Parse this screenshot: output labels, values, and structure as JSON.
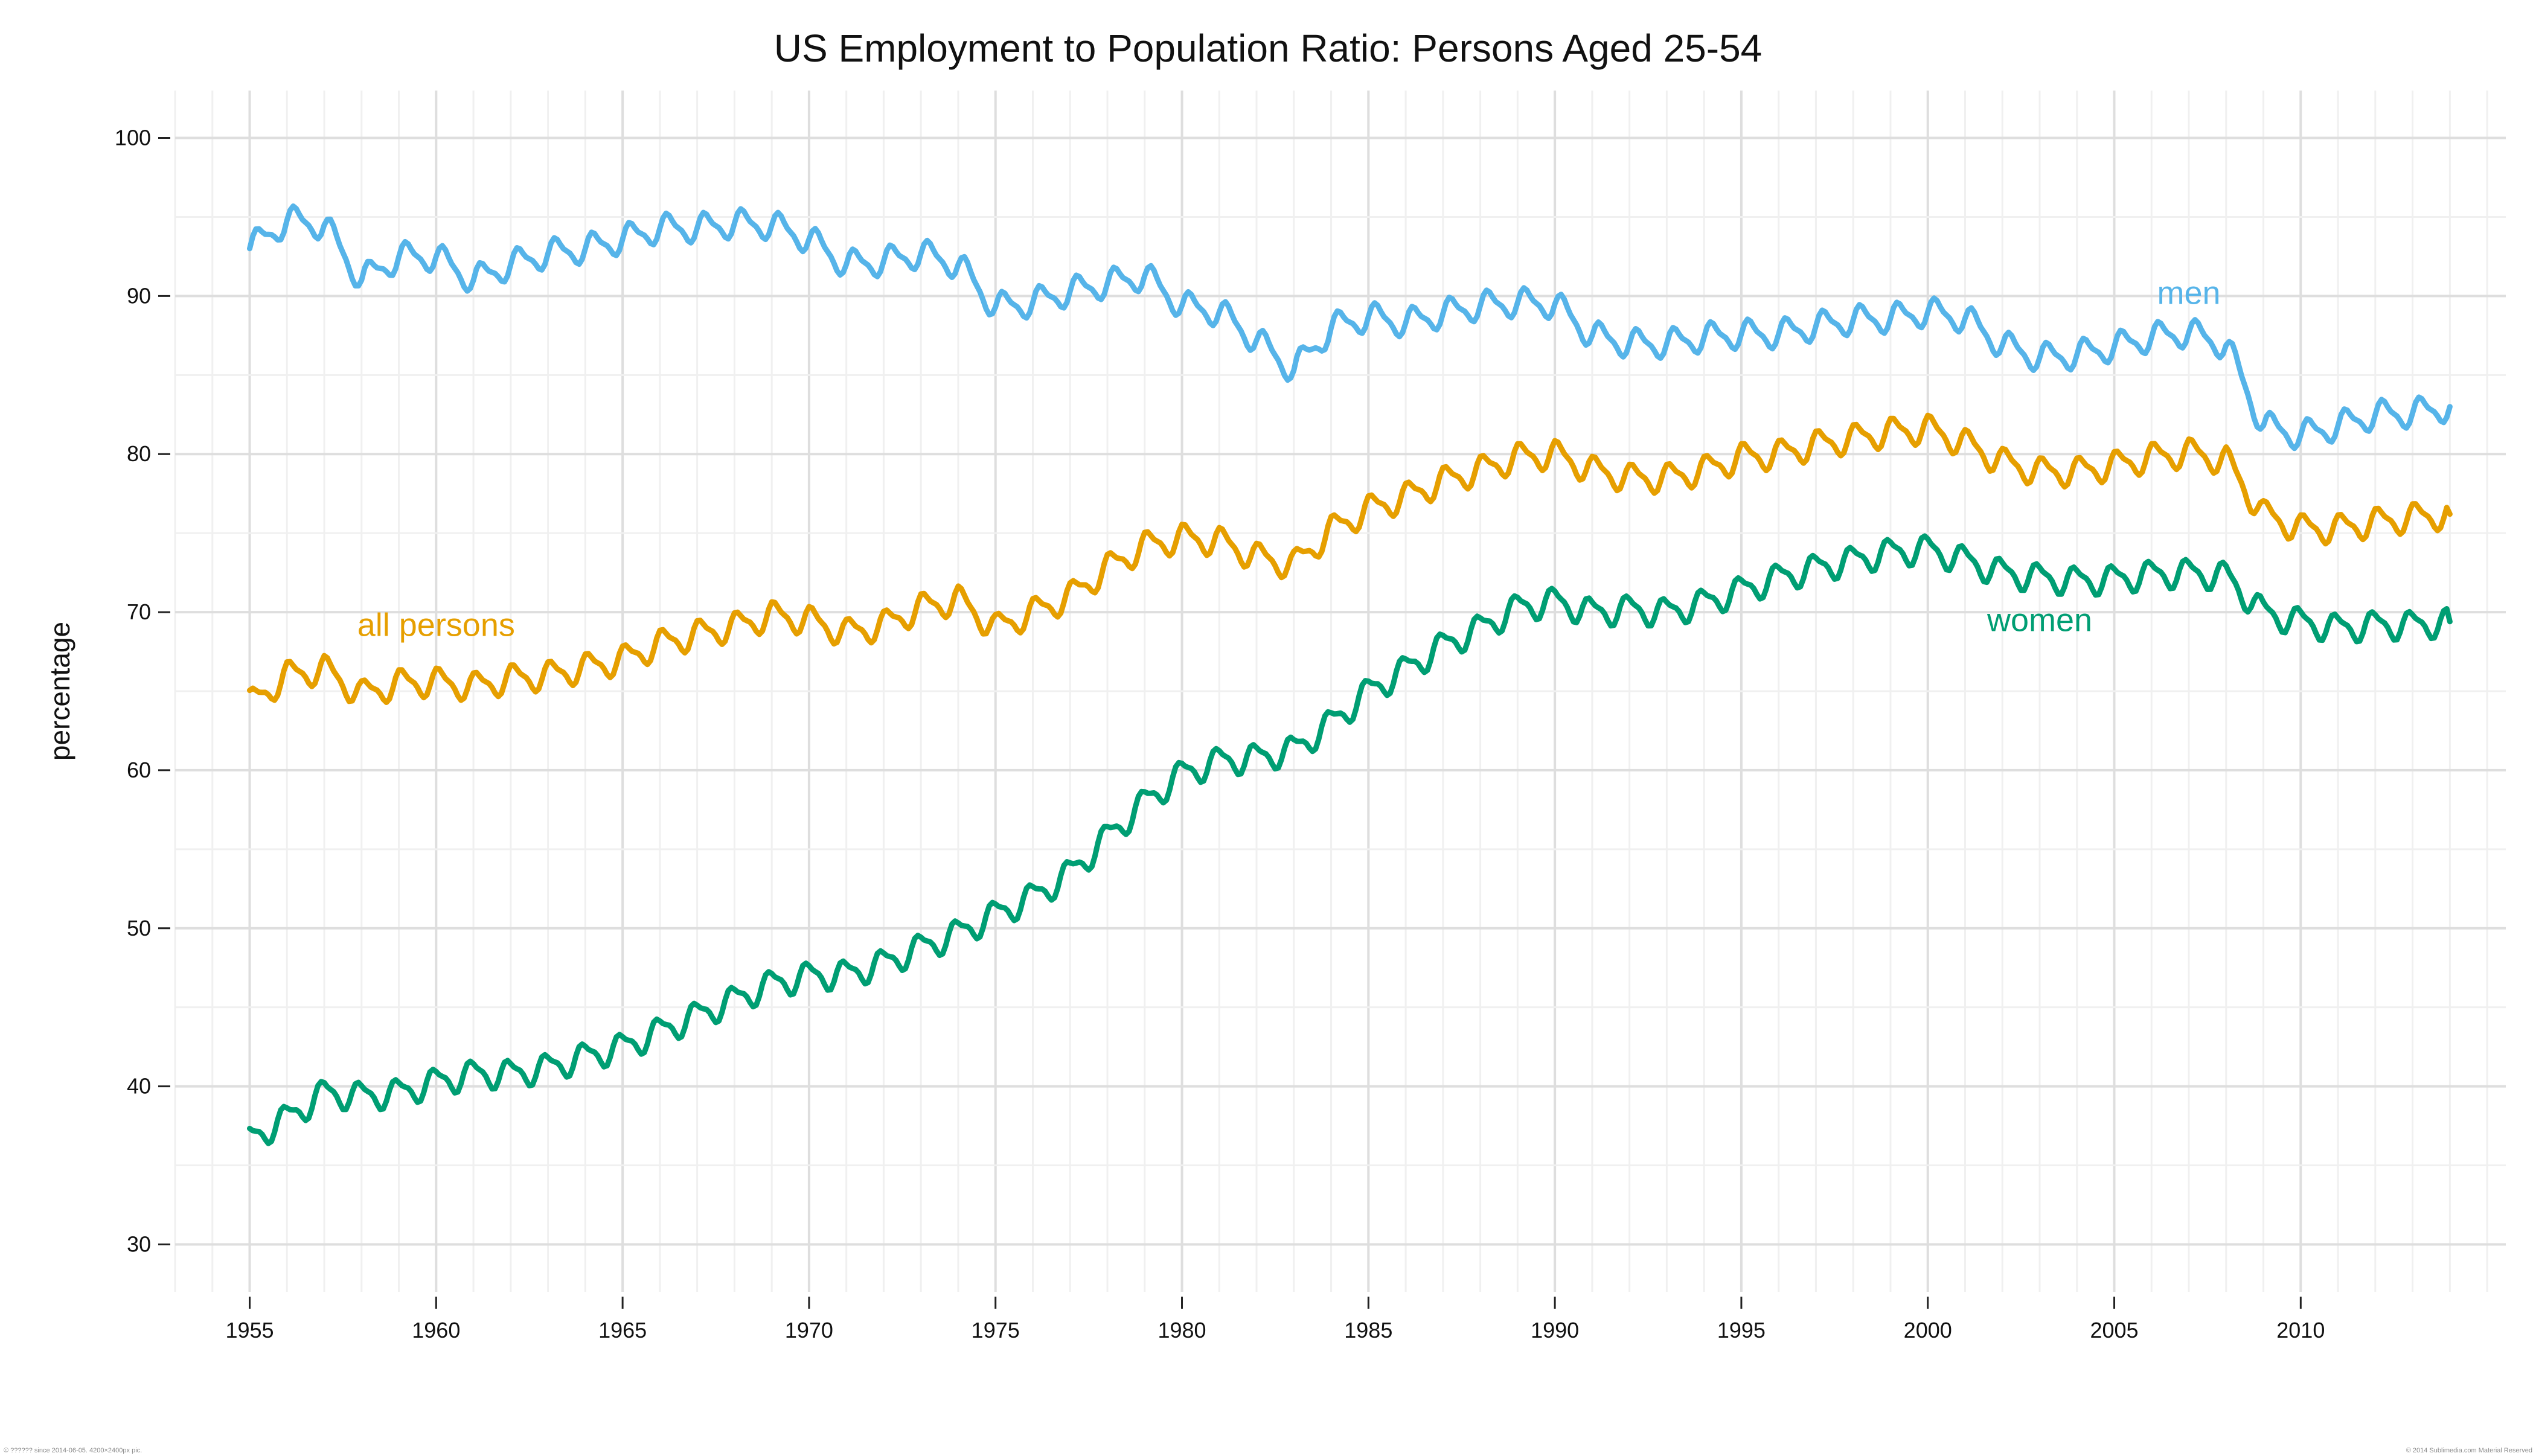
{
  "chart_data": {
    "type": "line",
    "title": "US Employment to Population Ratio: Persons Aged 25-54",
    "xlabel": "",
    "ylabel": "percentage",
    "xlim": [
      1953,
      2015.5
    ],
    "ylim": [
      27,
      103
    ],
    "x_ticks": [
      "1955",
      "1960",
      "1965",
      "1970",
      "1975",
      "1980",
      "1985",
      "1990",
      "1995",
      "2000",
      "2005",
      "2010"
    ],
    "y_ticks": [
      "30",
      "40",
      "50",
      "60",
      "70",
      "80",
      "90",
      "100"
    ],
    "grid": true,
    "x_anchors": [
      1955,
      1956,
      1957,
      1958,
      1959,
      1960,
      1961,
      1962,
      1963,
      1964,
      1965,
      1966,
      1967,
      1968,
      1969,
      1970,
      1971,
      1972,
      1973,
      1974,
      1975,
      1976,
      1977,
      1978,
      1979,
      1980,
      1981,
      1982,
      1983,
      1984,
      1985,
      1986,
      1987,
      1988,
      1989,
      1990,
      1991,
      1992,
      1993,
      1994,
      1995,
      1996,
      1997,
      1998,
      1999,
      2000,
      2001,
      2002,
      2003,
      2004,
      2005,
      2006,
      2007,
      2008,
      2009,
      2010,
      2011,
      2012,
      2013,
      2014
    ],
    "seasonal_amplitude": 0.8,
    "series": [
      {
        "name": "men",
        "color": "#56B4E9",
        "label_x": 2007.0,
        "label_y": 89.5,
        "values": [
          93.0,
          94.8,
          94.5,
          91.0,
          92.5,
          92.5,
          91.0,
          92.0,
          92.7,
          93.0,
          93.6,
          94.3,
          94.3,
          94.6,
          94.5,
          93.6,
          92.0,
          92.2,
          92.7,
          92.0,
          89.3,
          89.6,
          90.3,
          90.8,
          91.3,
          89.4,
          89.0,
          87.2,
          85.3,
          88.0,
          88.7,
          88.3,
          88.9,
          89.4,
          89.6,
          89.5,
          87.5,
          87.0,
          87.0,
          87.4,
          87.6,
          87.6,
          88.1,
          88.5,
          88.6,
          89.0,
          88.6,
          86.9,
          86.1,
          86.3,
          86.8,
          87.4,
          87.7,
          86.9,
          81.8,
          81.2,
          81.8,
          82.5,
          82.6,
          83.0
        ]
      },
      {
        "name": "all persons",
        "color": "#E69F00",
        "label_x": 1960.0,
        "label_y": 68.5,
        "values": [
          64.2,
          66.0,
          66.4,
          64.8,
          65.5,
          65.6,
          65.3,
          65.8,
          66.0,
          66.5,
          67.0,
          68.0,
          68.6,
          69.1,
          69.8,
          69.5,
          68.7,
          69.2,
          70.3,
          70.8,
          69.0,
          70.0,
          71.0,
          72.8,
          74.2,
          74.7,
          74.5,
          73.5,
          73.0,
          75.2,
          76.5,
          77.3,
          78.3,
          79.0,
          79.8,
          80.0,
          79.0,
          78.5,
          78.5,
          79.0,
          79.8,
          80.0,
          80.6,
          81.0,
          81.4,
          81.6,
          80.7,
          79.5,
          78.9,
          78.9,
          79.3,
          79.8,
          80.1,
          79.6,
          76.2,
          75.3,
          75.3,
          75.7,
          76.0,
          76.2
        ]
      },
      {
        "name": "women",
        "color": "#009E73",
        "label_x": 2003.0,
        "label_y": 68.8,
        "values": [
          36.7,
          38.0,
          39.6,
          39.4,
          39.6,
          40.3,
          40.8,
          40.8,
          41.2,
          41.9,
          42.5,
          43.5,
          44.5,
          45.5,
          46.5,
          47.0,
          47.1,
          47.8,
          48.8,
          49.7,
          50.9,
          52.0,
          53.5,
          55.8,
          58.0,
          59.8,
          60.6,
          60.8,
          61.3,
          63.0,
          65.0,
          66.4,
          67.9,
          69.0,
          70.3,
          70.7,
          70.0,
          70.2,
          70.0,
          70.6,
          71.4,
          72.2,
          72.8,
          73.3,
          73.8,
          74.0,
          73.3,
          72.5,
          72.2,
          72.0,
          72.1,
          72.4,
          72.5,
          72.3,
          70.0,
          69.4,
          69.0,
          69.2,
          69.2,
          69.4
        ]
      }
    ]
  },
  "footer": {
    "left": "© ?????? since 2014-06-05. 4200×2400px pic.",
    "right": "© 2014 Sublimedia.com Material Reserved"
  }
}
